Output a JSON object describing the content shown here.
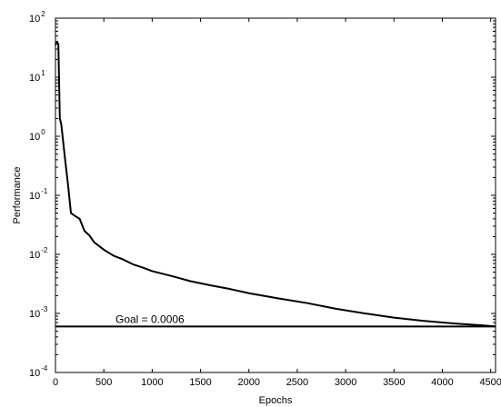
{
  "chart_data": {
    "type": "line",
    "xlabel": "Epochs",
    "ylabel": "Performance",
    "xlim": [
      0,
      4550
    ],
    "ylim": [
      0.0001,
      100
    ],
    "yscale": "log",
    "grid": false,
    "x_ticks": [
      0,
      500,
      1000,
      1500,
      2000,
      2500,
      3000,
      3500,
      4000,
      4500
    ],
    "y_ticks": [
      {
        "value": 0.0001,
        "base": "10",
        "exp": "-4"
      },
      {
        "value": 0.001,
        "base": "10",
        "exp": "-3"
      },
      {
        "value": 0.01,
        "base": "10",
        "exp": "-2"
      },
      {
        "value": 0.1,
        "base": "10",
        "exp": "-1"
      },
      {
        "value": 1,
        "base": "10",
        "exp": "0"
      },
      {
        "value": 10,
        "base": "10",
        "exp": "1"
      },
      {
        "value": 100,
        "base": "10",
        "exp": "2"
      }
    ],
    "series": [
      {
        "x": [
          0,
          15,
          30,
          45,
          60,
          80,
          100,
          130,
          160,
          200,
          250,
          300,
          350,
          400,
          500,
          600,
          700,
          800,
          900,
          1000,
          1200,
          1400,
          1600,
          1800,
          2000,
          2300,
          2600,
          2900,
          3200,
          3500,
          3800,
          4100,
          4400,
          4550
        ],
        "y": [
          35,
          40,
          36,
          2.0,
          1.6,
          0.8,
          0.4,
          0.15,
          0.05,
          0.045,
          0.04,
          0.025,
          0.021,
          0.016,
          0.012,
          0.0095,
          0.0082,
          0.0068,
          0.006,
          0.0052,
          0.0043,
          0.0035,
          0.003,
          0.0026,
          0.0022,
          0.0018,
          0.0015,
          0.0012,
          0.001,
          0.00085,
          0.00075,
          0.00068,
          0.00063,
          0.0006
        ]
      }
    ],
    "goal": {
      "value": 0.0006,
      "label": "Goal = 0.0006"
    }
  }
}
